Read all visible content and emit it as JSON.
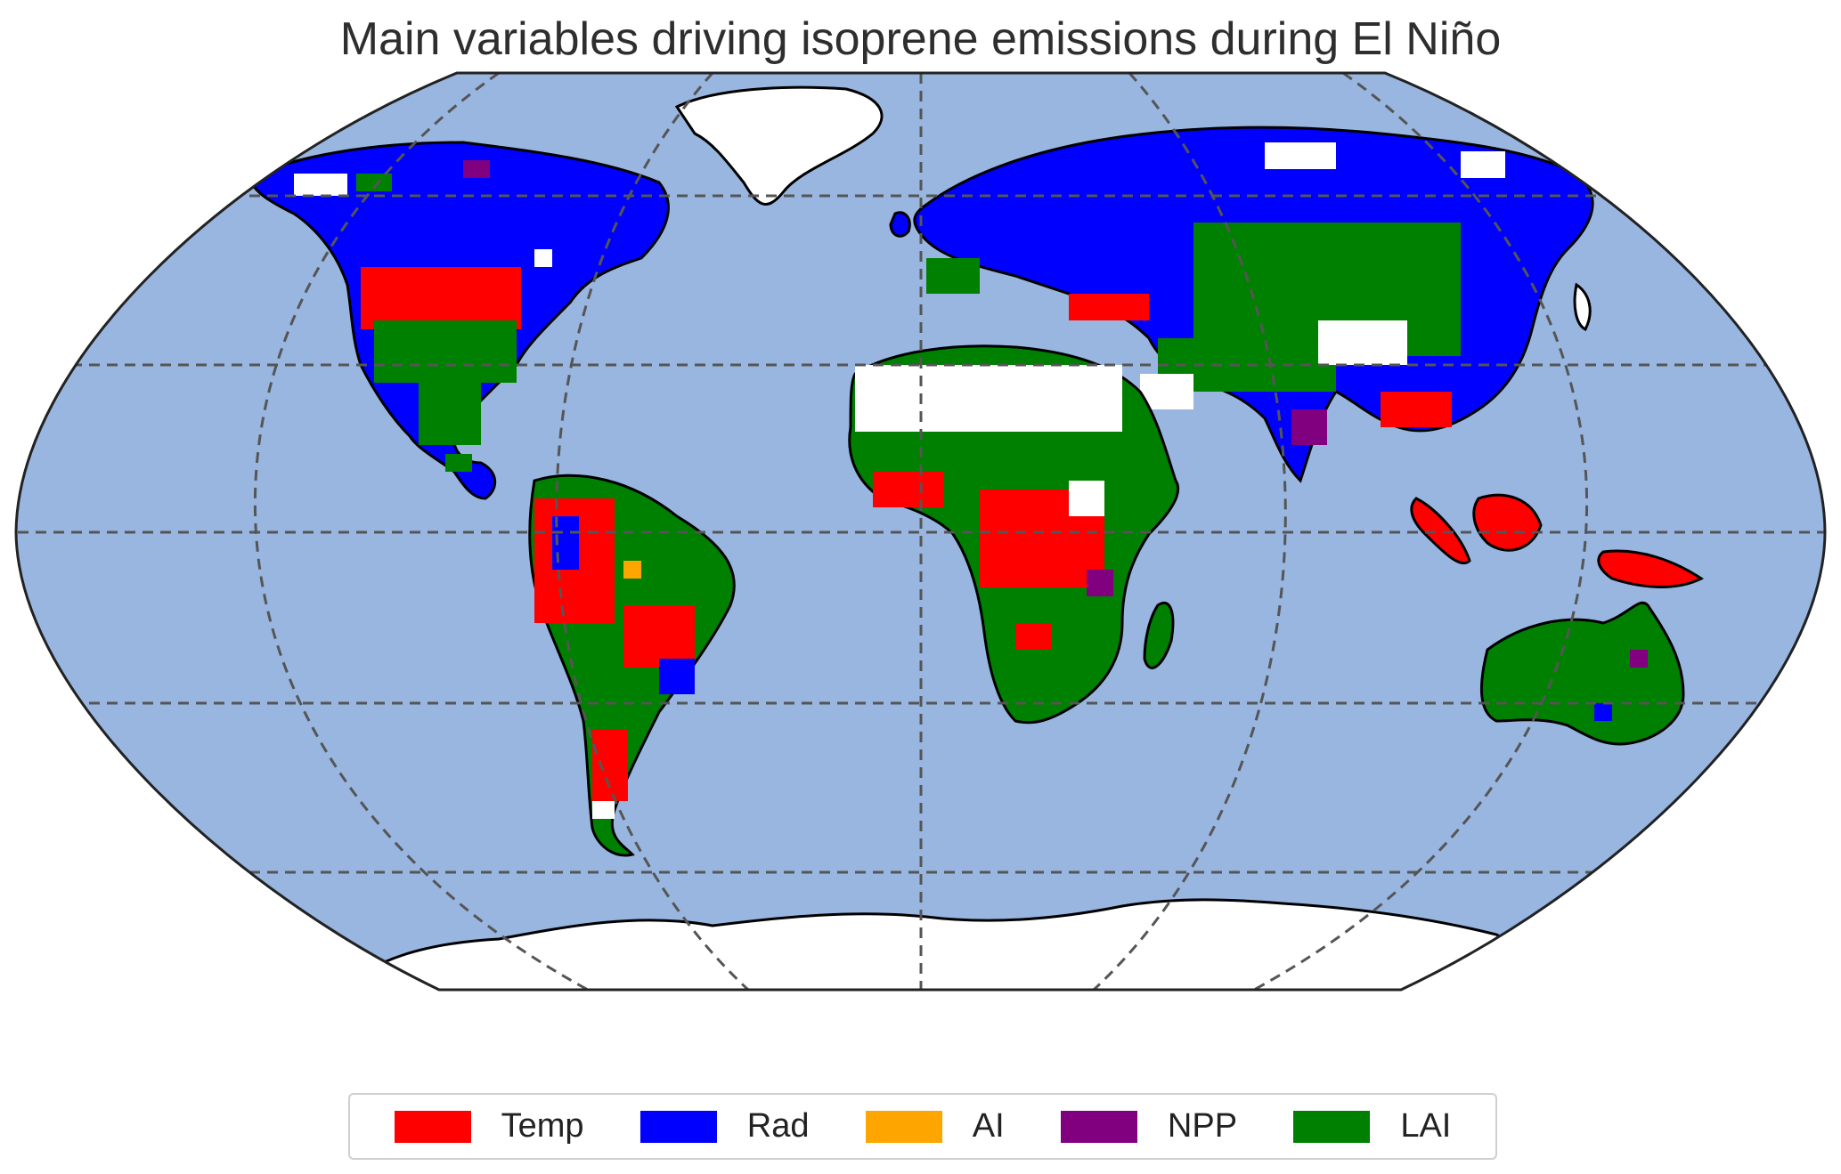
{
  "title": "Main variables driving isoprene emissions during El Niño",
  "colors": {
    "ocean": "#98b6e0",
    "Temp": "#ff0000",
    "Rad": "#0000ff",
    "AI": "#ffa500",
    "NPP": "#800080",
    "LAI": "#008000",
    "no_data_land": "#ffffff"
  },
  "legend": [
    {
      "label": "Temp",
      "color": "#ff0000"
    },
    {
      "label": "Rad",
      "color": "#0000ff"
    },
    {
      "label": "AI",
      "color": "#ffa500"
    },
    {
      "label": "NPP",
      "color": "#800080"
    },
    {
      "label": "LAI",
      "color": "#008000"
    }
  ],
  "projection": "Robinson",
  "gridlines": "dashed",
  "legend_placement": "bottom-center"
}
